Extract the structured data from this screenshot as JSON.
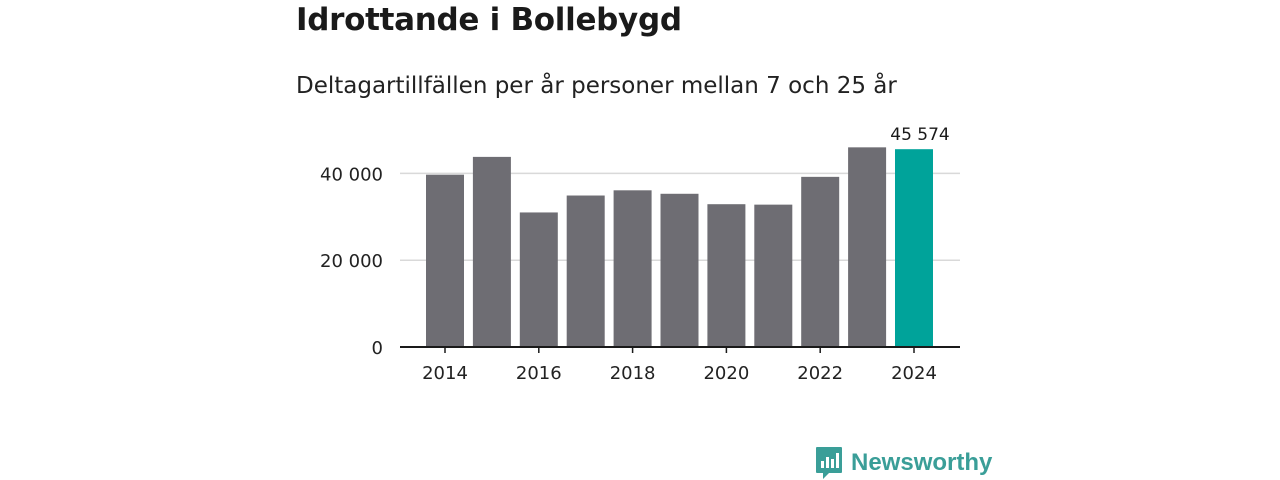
{
  "title": "Idrottande i Bollebygd",
  "subtitle": "Deltagartillfällen per år personer mellan 7 och 25 år",
  "brand": {
    "name": "Newsworthy",
    "icon": "newsworthy-logo-icon"
  },
  "colors": {
    "bar": "#6e6d73",
    "highlight": "#00a39a",
    "grid": "#d9d9d9",
    "axis": "#1a1a1a",
    "brand": "#3a9e98"
  },
  "chart_data": {
    "type": "bar",
    "title": "",
    "xlabel": "",
    "ylabel": "",
    "categories": [
      "2014",
      "2015",
      "2016",
      "2017",
      "2018",
      "2019",
      "2020",
      "2021",
      "2022",
      "2023",
      "2024"
    ],
    "values": [
      39700,
      43800,
      31000,
      34900,
      36100,
      35300,
      32900,
      32800,
      39200,
      46000,
      45574
    ],
    "highlight_index": 10,
    "data_labels": [
      {
        "index": 10,
        "text": "45 574"
      }
    ],
    "ylim": [
      0,
      47000
    ],
    "y_ticks": [
      {
        "value": 0,
        "label": "0"
      },
      {
        "value": 20000,
        "label": "20 000"
      },
      {
        "value": 40000,
        "label": "40 000"
      }
    ],
    "x_ticks": [
      {
        "category": "2014",
        "label": "2014"
      },
      {
        "category": "2016",
        "label": "2016"
      },
      {
        "category": "2018",
        "label": "2018"
      },
      {
        "category": "2020",
        "label": "2020"
      },
      {
        "category": "2022",
        "label": "2022"
      },
      {
        "category": "2024",
        "label": "2024"
      }
    ],
    "grid": true
  }
}
